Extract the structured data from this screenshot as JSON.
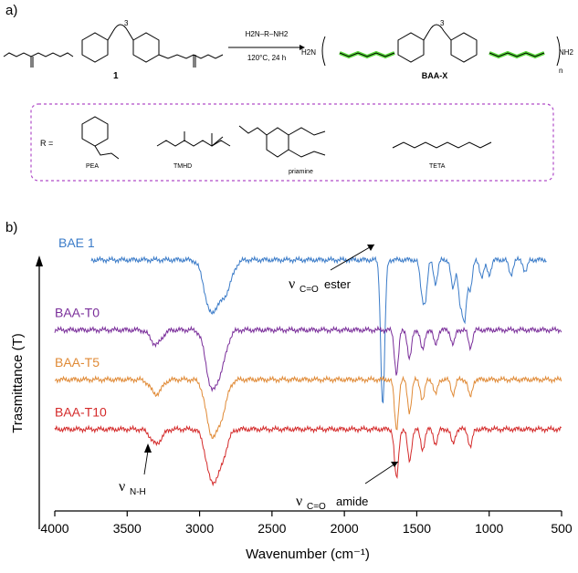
{
  "panel_a": {
    "label": "a)",
    "compound_number": "1",
    "reagent": "H2N–R–NH2",
    "condition": "120°C, 24 h",
    "product_name": "BAA-X",
    "subscript_3": "3",
    "subscript_n": "n",
    "chain_end_left": "H2N",
    "chain_end_right": "NH2",
    "r_equals": "R =",
    "r_groups": [
      "PEA",
      "TMHD",
      "priamine",
      "TETA"
    ],
    "highlight_color": "#5ad93c",
    "box_color": "#b04cc8"
  },
  "chart_data": {
    "type": "line",
    "panel_label": "b)",
    "xlabel": "Wavenumber (cm⁻¹)",
    "ylabel": "Trasmittance (T)",
    "xlim": [
      4000,
      500
    ],
    "x_ticks": [
      4000,
      3500,
      3000,
      2500,
      2000,
      1500,
      1000,
      500
    ],
    "y_ticks_shown": false,
    "series": [
      {
        "name": "BAE 1",
        "color": "#3a7bc8",
        "baseline": 0.86,
        "peaks": [
          [
            2955,
            0.04
          ],
          [
            2920,
            0.14
          ],
          [
            2850,
            0.09
          ],
          [
            2800,
            0.06
          ],
          [
            1735,
            0.5
          ],
          [
            1465,
            0.1
          ],
          [
            1440,
            0.12
          ],
          [
            1370,
            0.08
          ],
          [
            1250,
            0.1
          ],
          [
            1200,
            0.14
          ],
          [
            1170,
            0.2
          ],
          [
            1130,
            0.1
          ],
          [
            1050,
            0.06
          ],
          [
            1000,
            0.05
          ],
          [
            850,
            0.05
          ],
          [
            750,
            0.04
          ]
        ]
      },
      {
        "name": "BAA-T0",
        "color": "#7a2e9a",
        "baseline": 0.62,
        "peaks": [
          [
            3300,
            0.05
          ],
          [
            2920,
            0.18
          ],
          [
            2850,
            0.11
          ],
          [
            1640,
            0.15
          ],
          [
            1550,
            0.1
          ],
          [
            1460,
            0.07
          ],
          [
            1370,
            0.05
          ],
          [
            1250,
            0.05
          ],
          [
            1130,
            0.06
          ]
        ]
      },
      {
        "name": "BAA-T5",
        "color": "#e08a36",
        "baseline": 0.45,
        "peaks": [
          [
            3300,
            0.05
          ],
          [
            2920,
            0.17
          ],
          [
            2850,
            0.11
          ],
          [
            1640,
            0.17
          ],
          [
            1550,
            0.11
          ],
          [
            1460,
            0.07
          ],
          [
            1370,
            0.05
          ],
          [
            1250,
            0.05
          ],
          [
            1130,
            0.06
          ]
        ]
      },
      {
        "name": "BAA-T10",
        "color": "#d42a2a",
        "baseline": 0.28,
        "peaks": [
          [
            3300,
            0.05
          ],
          [
            2920,
            0.16
          ],
          [
            2850,
            0.1
          ],
          [
            1640,
            0.17
          ],
          [
            1550,
            0.11
          ],
          [
            1460,
            0.07
          ],
          [
            1370,
            0.05
          ],
          [
            1250,
            0.05
          ],
          [
            1130,
            0.06
          ]
        ]
      }
    ],
    "annotations": [
      {
        "symbol": "ν",
        "subscript": "C=O",
        "text": "ester",
        "x": 1735
      },
      {
        "symbol": "ν",
        "subscript": "N-H",
        "text": "",
        "x": 3300
      },
      {
        "symbol": "ν",
        "subscript": "C=O",
        "text": "amide",
        "x": 1640
      }
    ]
  }
}
